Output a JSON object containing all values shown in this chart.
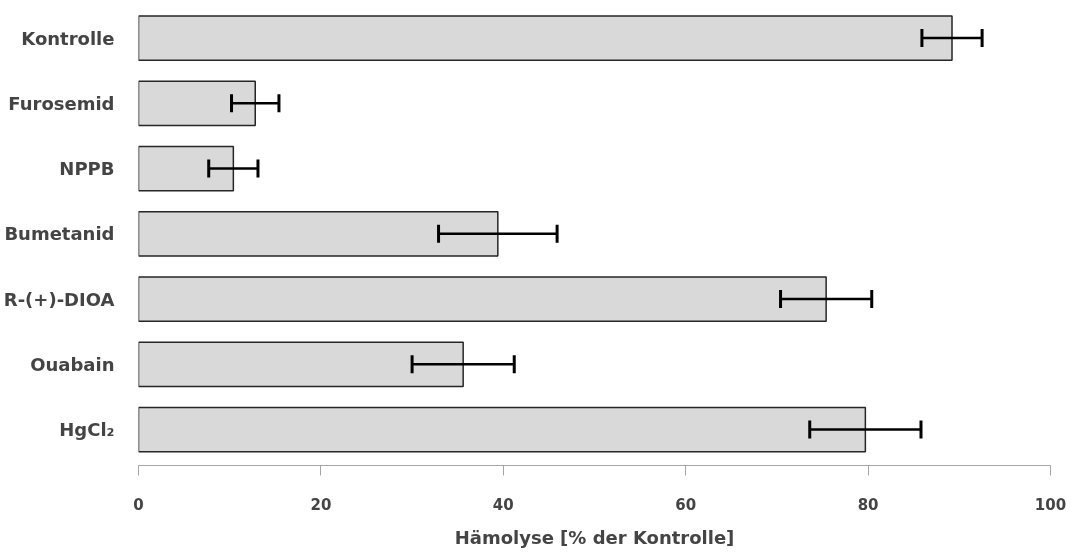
{
  "chart_data": {
    "type": "bar",
    "orientation": "horizontal",
    "categories": [
      "Kontrolle",
      "Furosemid",
      "NPPB",
      "Bumetanid",
      "R-(+)-DIOA",
      "Ouabain",
      "HgCl₂"
    ],
    "values": [
      89.2,
      12.8,
      10.4,
      39.4,
      75.4,
      35.6,
      79.7
    ],
    "errors": [
      3.3,
      2.6,
      2.7,
      6.5,
      5.0,
      5.6,
      6.1
    ],
    "color": "#d9d9d9",
    "xlim": [
      0,
      100
    ],
    "xticks": [
      0,
      20,
      40,
      60,
      80,
      100
    ],
    "xlabel": "Hämolyse [% der Kontrolle]",
    "grid": false
  }
}
